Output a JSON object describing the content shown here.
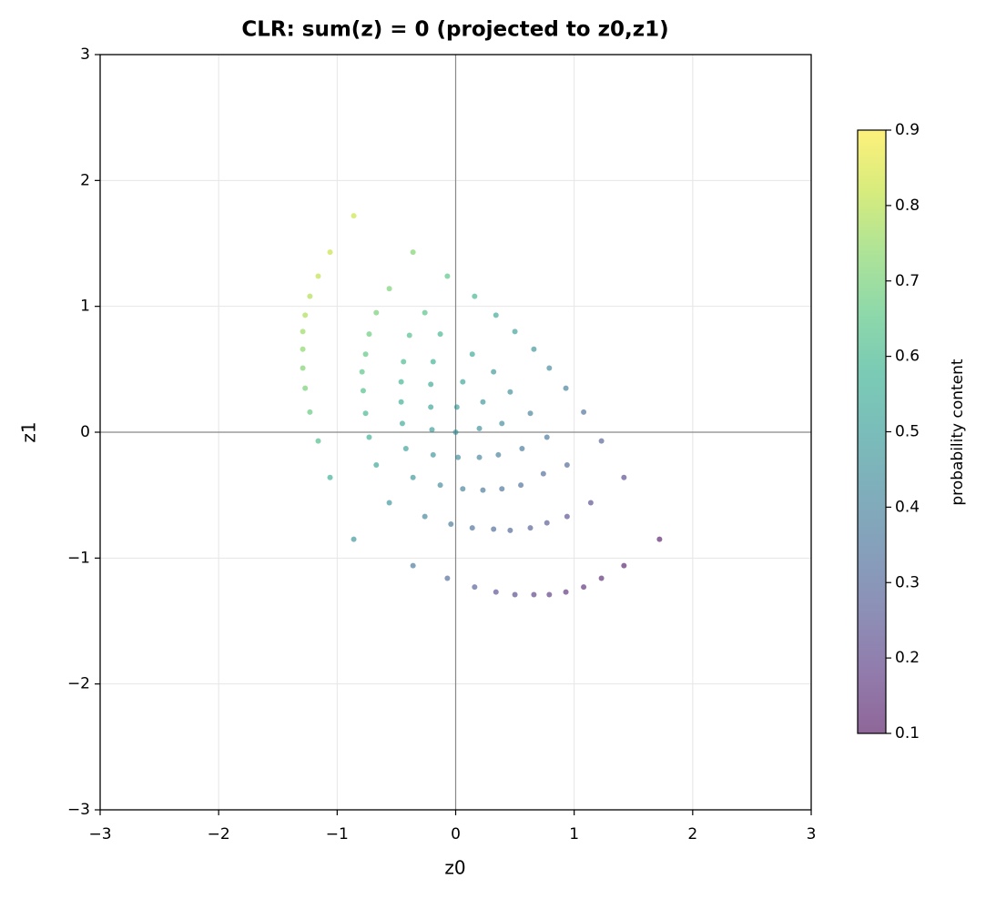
{
  "chart_data": {
    "type": "scatter",
    "title": "CLR:  sum(z) = 0  (projected to z0,z1)",
    "x_label": "z0",
    "y_label": "z1",
    "colorbar_label": "probability content",
    "colormap": "viridis",
    "alpha": 0.6,
    "grid": true,
    "zero_lines": true,
    "xlim": [
      -3,
      3
    ],
    "ylim": [
      -3,
      3
    ],
    "xticks": [
      {
        "value": -3,
        "label": "−3"
      },
      {
        "value": -2,
        "label": "−2"
      },
      {
        "value": -1,
        "label": "−1"
      },
      0,
      1,
      2,
      3
    ],
    "yticks": [
      {
        "value": -3,
        "label": "−3"
      },
      {
        "value": -2,
        "label": "−2"
      },
      {
        "value": -1,
        "label": "−1"
      },
      0,
      1,
      2,
      3
    ],
    "clim": [
      0.1,
      0.9
    ],
    "cticks": [
      0.1,
      0.2,
      0.3,
      0.4,
      0.5,
      0.6,
      0.7,
      0.8,
      0.9
    ],
    "x": [
      -0.86,
      -1.06,
      -1.16,
      -1.23,
      -1.27,
      -1.29,
      -1.29,
      -1.29,
      -1.27,
      -1.23,
      -1.16,
      -1.06,
      -0.86,
      -0.36,
      -0.56,
      -0.67,
      -0.73,
      -0.76,
      -0.79,
      -0.78,
      -0.76,
      -0.73,
      -0.67,
      -0.56,
      -0.36,
      -0.07,
      -0.26,
      -0.39,
      -0.44,
      -0.46,
      -0.46,
      -0.45,
      -0.42,
      -0.36,
      -0.26,
      -0.07,
      0.16,
      -0.13,
      -0.19,
      -0.21,
      -0.21,
      -0.2,
      -0.19,
      -0.13,
      -0.04,
      0.16,
      0.34,
      0.14,
      0.06,
      0.01,
      0.0,
      0.02,
      0.06,
      0.14,
      0.34,
      0.5,
      0.32,
      0.23,
      0.2,
      0.2,
      0.23,
      0.32,
      0.5,
      0.66,
      0.46,
      0.39,
      0.36,
      0.39,
      0.46,
      0.66,
      0.79,
      0.63,
      0.56,
      0.55,
      0.63,
      0.79,
      0.93,
      0.77,
      0.74,
      0.77,
      0.93,
      1.08,
      0.94,
      0.94,
      1.08,
      1.23,
      1.14,
      1.23,
      1.42,
      1.42,
      1.72
    ],
    "y": [
      1.72,
      1.43,
      1.24,
      1.08,
      0.93,
      0.8,
      0.66,
      0.51,
      0.35,
      0.16,
      -0.07,
      -0.36,
      -0.85,
      1.43,
      1.14,
      0.95,
      0.78,
      0.62,
      0.48,
      0.33,
      0.15,
      -0.04,
      -0.26,
      -0.56,
      -1.06,
      1.24,
      0.95,
      0.77,
      0.56,
      0.4,
      0.24,
      0.07,
      -0.13,
      -0.36,
      -0.67,
      -1.16,
      1.08,
      0.78,
      0.56,
      0.38,
      0.2,
      0.02,
      -0.18,
      -0.42,
      -0.73,
      -1.23,
      0.93,
      0.62,
      0.4,
      0.2,
      0.0,
      -0.2,
      -0.45,
      -0.76,
      -1.27,
      0.8,
      0.48,
      0.24,
      0.03,
      -0.2,
      -0.46,
      -0.77,
      -1.29,
      0.66,
      0.32,
      0.07,
      -0.18,
      -0.45,
      -0.78,
      -1.29,
      0.51,
      0.15,
      -0.13,
      -0.42,
      -0.76,
      -1.29,
      0.35,
      -0.04,
      -0.33,
      -0.72,
      -1.27,
      0.16,
      -0.26,
      -0.67,
      -1.23,
      -0.07,
      -0.56,
      -1.16,
      -0.36,
      -1.06,
      -0.85
    ],
    "c": [
      0.83,
      0.82,
      0.81,
      0.79,
      0.78,
      0.76,
      0.74,
      0.72,
      0.7,
      0.67,
      0.62,
      0.57,
      0.47,
      0.72,
      0.71,
      0.7,
      0.68,
      0.66,
      0.65,
      0.63,
      0.6,
      0.57,
      0.53,
      0.47,
      0.37,
      0.65,
      0.64,
      0.63,
      0.61,
      0.59,
      0.57,
      0.54,
      0.51,
      0.47,
      0.41,
      0.32,
      0.6,
      0.6,
      0.58,
      0.55,
      0.53,
      0.5,
      0.47,
      0.43,
      0.37,
      0.28,
      0.55,
      0.54,
      0.52,
      0.5,
      0.47,
      0.44,
      0.4,
      0.34,
      0.24,
      0.51,
      0.49,
      0.47,
      0.45,
      0.41,
      0.37,
      0.32,
      0.22,
      0.47,
      0.45,
      0.43,
      0.39,
      0.35,
      0.3,
      0.2,
      0.43,
      0.4,
      0.37,
      0.33,
      0.28,
      0.18,
      0.39,
      0.36,
      0.32,
      0.26,
      0.16,
      0.34,
      0.3,
      0.24,
      0.15,
      0.29,
      0.23,
      0.14,
      0.22,
      0.12,
      0.11
    ]
  }
}
